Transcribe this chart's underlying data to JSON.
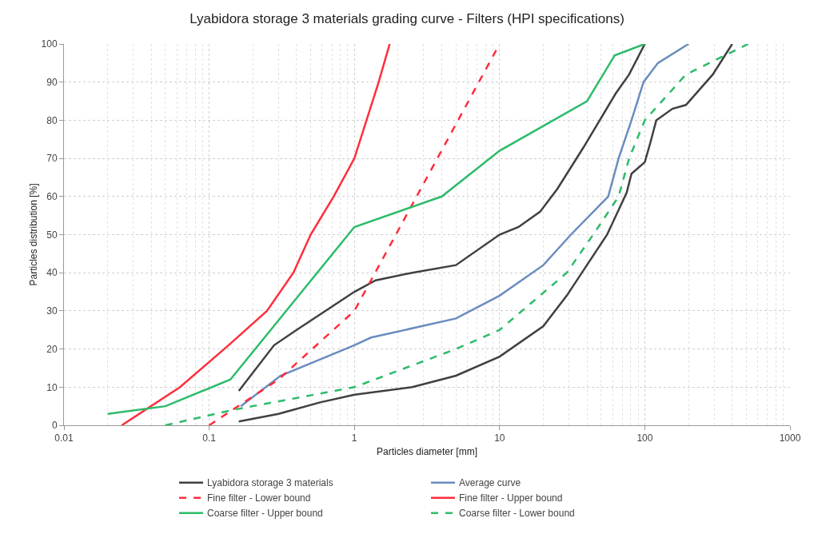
{
  "chart_data": {
    "type": "line",
    "title": "Lyabidora storage 3 materials grading curve - Filters (HPI specifications)",
    "xlabel": "Particles diameter [mm]",
    "ylabel": "Particles distribution [%]",
    "log": "x",
    "grid": true,
    "legend": "bottom",
    "marker": "none",
    "xlim": [
      0.01,
      1000
    ],
    "xticks": [
      0.01,
      0.1,
      1,
      10,
      100,
      1000
    ],
    "ylim": [
      0,
      100
    ],
    "yticks": [
      0,
      10,
      20,
      30,
      40,
      50,
      60,
      70,
      80,
      90,
      100
    ],
    "series": [
      {
        "name": "Lyabidora storage 3 materials",
        "color": "#404040",
        "line_style": "solid",
        "x": [
          0.16,
          0.28,
          0.4,
          1,
          1.4,
          2.5,
          5,
          10,
          13.5,
          19,
          25,
          38,
          63,
          78,
          100
        ],
        "values": [
          9,
          21,
          25,
          35,
          38,
          40,
          42,
          50,
          52,
          56,
          62,
          73,
          87,
          92,
          100
        ]
      },
      {
        "color": "#404040",
        "line_style": "solid",
        "x": [
          0.16,
          0.3,
          0.58,
          1,
          2.5,
          5,
          10,
          20,
          29,
          55,
          75,
          81,
          100,
          109,
          120,
          155,
          192,
          294,
          400
        ],
        "values": [
          1,
          3,
          6,
          8,
          10,
          13,
          18,
          26,
          34,
          50,
          61,
          66,
          69,
          74,
          80,
          83,
          84,
          92,
          100
        ]
      },
      {
        "name": "Average curve",
        "color": "#6a8cbf",
        "line_style": "solid",
        "x": [
          0.165,
          0.31,
          1,
          1.3,
          5,
          10,
          20,
          31,
          56,
          66,
          81,
          98,
          123,
          200
        ],
        "values": [
          5,
          13,
          21,
          23,
          28,
          34,
          42,
          50,
          60,
          70,
          80,
          90,
          95,
          100
        ]
      },
      {
        "name": "Fine filter - Lower bound",
        "color": "#ff2d3b",
        "line_style": "dashed",
        "x": [
          0.1,
          0.3,
          1,
          10
        ],
        "values": [
          0,
          12,
          30,
          100
        ]
      },
      {
        "name": "Fine filter - Upper bound",
        "color": "#ff2d3b",
        "line_style": "solid",
        "x": [
          0.025,
          0.063,
          0.136,
          0.25,
          0.38,
          0.5,
          0.72,
          1,
          1.47,
          1.75
        ],
        "values": [
          0,
          10,
          21,
          30,
          40,
          50,
          60,
          70,
          90,
          100
        ]
      },
      {
        "name": "Coarse filter - Upper bound",
        "color": "#2dbb6a",
        "line_style": "solid",
        "x": [
          0.02,
          0.05,
          0.14,
          1,
          4,
          10,
          40,
          62,
          100
        ],
        "values": [
          3,
          5,
          12,
          52,
          60,
          72,
          85,
          97,
          100
        ]
      },
      {
        "name": "Coarse filter - Lower bound",
        "color": "#2dbb6a",
        "line_style": "dashed",
        "x": [
          0.05,
          0.144,
          1,
          5,
          10,
          29,
          46,
          66,
          78,
          100,
          192,
          515
        ],
        "values": [
          0,
          4,
          10,
          20,
          25,
          40,
          51,
          60,
          70,
          80,
          92,
          100
        ]
      }
    ]
  }
}
